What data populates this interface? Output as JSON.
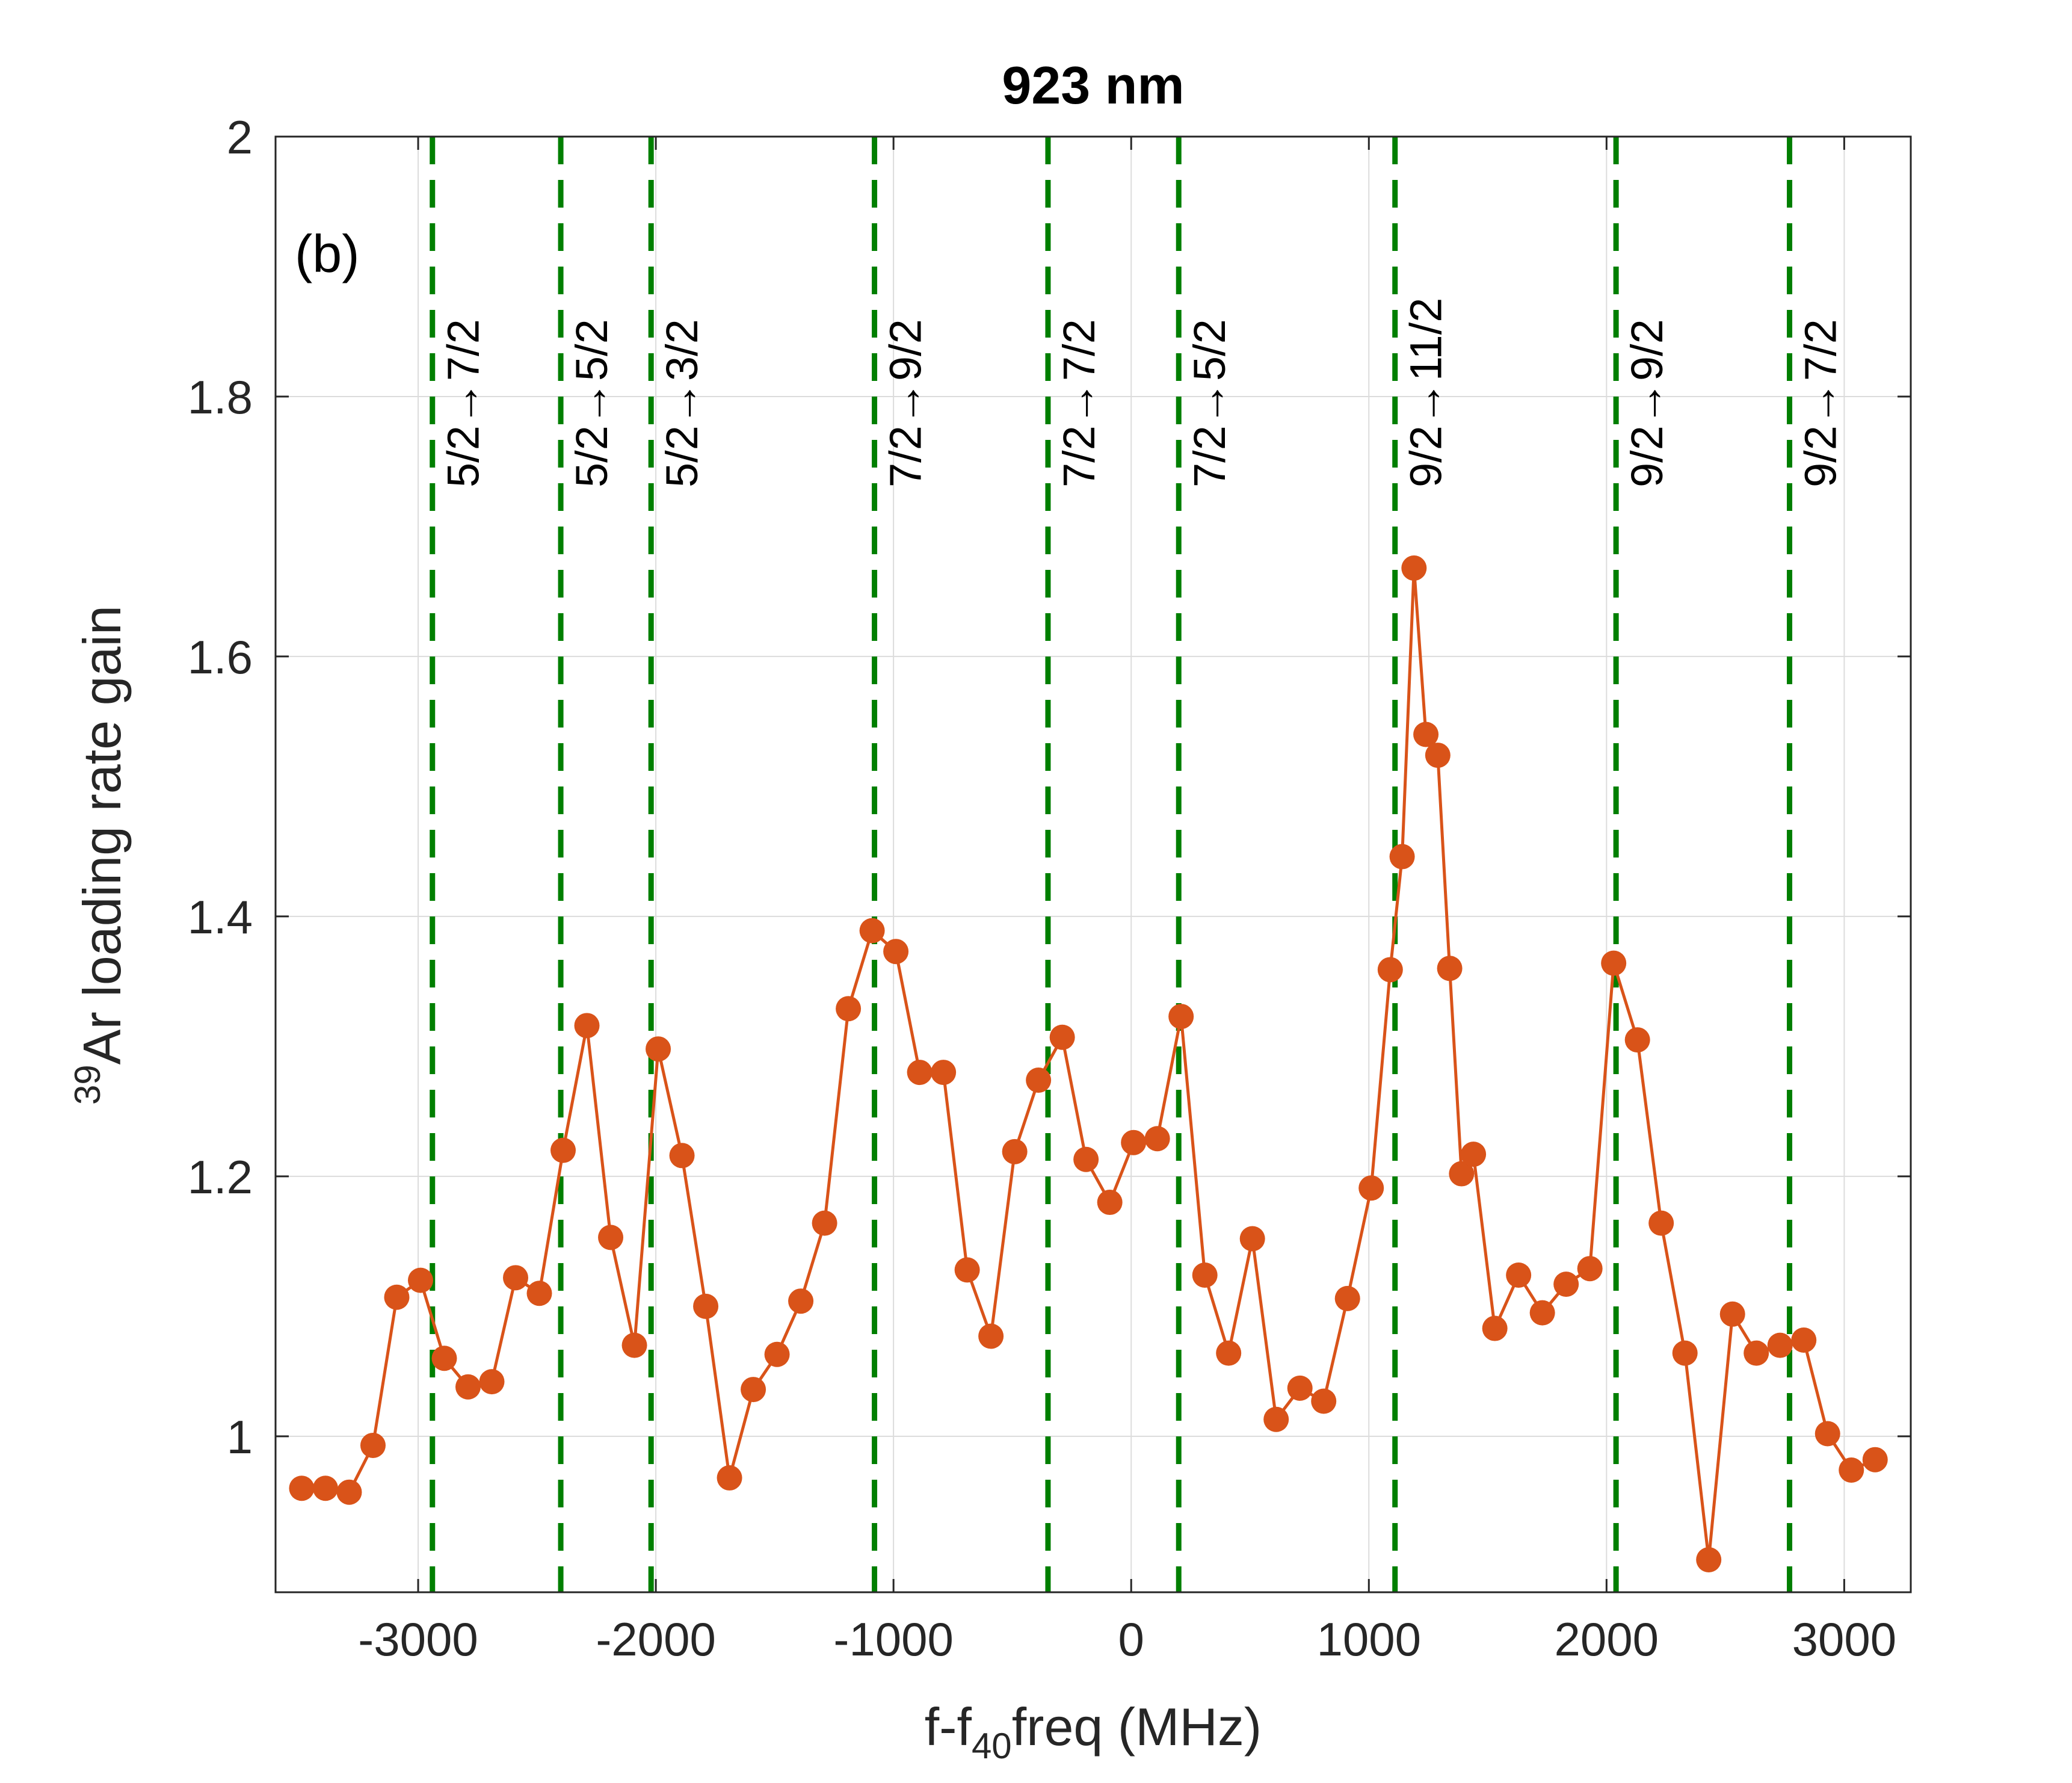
{
  "chart_data": {
    "type": "line",
    "title": "923 nm",
    "panel_label": "(b)",
    "xlabel_prefix": "f-f",
    "xlabel_sub": "40",
    "xlabel_suffix": "freq (MHz)",
    "ylabel_sup": "39",
    "ylabel_main": "Ar loading rate gain",
    "xlim": [
      -3600,
      3280
    ],
    "ylim": [
      0.88,
      2.0
    ],
    "xticks": [
      -3000,
      -2000,
      -1000,
      0,
      1000,
      2000,
      3000
    ],
    "xtick_labels": [
      "-3000",
      "-2000",
      "-1000",
      "0",
      "1000",
      "2000",
      "3000"
    ],
    "yticks": [
      1.0,
      1.2,
      1.4,
      1.6,
      1.8,
      2.0
    ],
    "ytick_labels": [
      "1",
      "1.2",
      "1.4",
      "1.6",
      "1.8",
      "2"
    ],
    "grid": true,
    "series": [
      {
        "name": "39Ar loading rate gain",
        "color": "#D95319",
        "x": [
          -3490,
          -3390,
          -3290,
          -3190,
          -3090,
          -2990,
          -2890,
          -2790,
          -2690,
          -2590,
          -2490,
          -2390,
          -2290,
          -2190,
          -2090,
          -1990,
          -1890,
          -1790,
          -1690,
          -1590,
          -1490,
          -1390,
          -1290,
          -1190,
          -1090,
          -990,
          -890,
          -790,
          -690,
          -590,
          -490,
          -390,
          -290,
          -190,
          -90,
          10,
          110,
          210,
          310,
          410,
          510,
          610,
          710,
          810,
          910,
          1010,
          1090,
          1140,
          1190,
          1240,
          1290,
          1340,
          1390,
          1440,
          1530,
          1630,
          1730,
          1830,
          1930,
          2030,
          2130,
          2230,
          2330,
          2430,
          2530,
          2630,
          2730,
          2830,
          2930,
          3030,
          3130
        ],
        "y": [
          0.96,
          0.96,
          0.957,
          0.993,
          1.107,
          1.12,
          1.06,
          1.038,
          1.042,
          1.122,
          1.11,
          1.22,
          1.316,
          1.153,
          1.07,
          1.298,
          1.216,
          1.1,
          0.968,
          1.036,
          1.063,
          1.104,
          1.164,
          1.329,
          1.389,
          1.373,
          1.28,
          1.28,
          1.128,
          1.077,
          1.219,
          1.274,
          1.307,
          1.213,
          1.18,
          1.226,
          1.229,
          1.323,
          1.124,
          1.064,
          1.152,
          1.013,
          1.037,
          1.027,
          1.106,
          1.191,
          1.359,
          1.446,
          1.668,
          1.54,
          1.524,
          1.36,
          1.202,
          1.217,
          1.083,
          1.124,
          1.095,
          1.117,
          1.129,
          1.364,
          1.305,
          1.164,
          1.064,
          0.905,
          1.094,
          1.064,
          1.07,
          1.074,
          1.002,
          0.974,
          0.982
        ]
      }
    ],
    "transitions": [
      {
        "x": -2940,
        "label": "5/2→7/2"
      },
      {
        "x": -2400,
        "label": "5/2→5/2"
      },
      {
        "x": -2020,
        "label": "5/2→3/2"
      },
      {
        "x": -1080,
        "label": "7/2→9/2"
      },
      {
        "x": -350,
        "label": "7/2→7/2"
      },
      {
        "x": 200,
        "label": "7/2→5/2"
      },
      {
        "x": 1110,
        "label": "9/2→11/2"
      },
      {
        "x": 2040,
        "label": "9/2→9/2"
      },
      {
        "x": 2770,
        "label": "9/2→7/2"
      }
    ],
    "transition_line_color": "#007F00",
    "frame_color": "#262626",
    "grid_color": "#DCDCDC"
  }
}
